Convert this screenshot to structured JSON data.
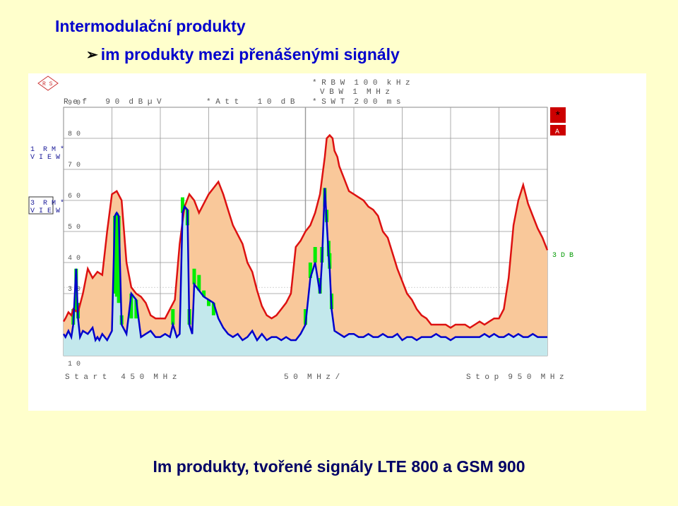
{
  "page": {
    "title": "Intermodulační produkty",
    "bullet": "im produkty mezi přenášenými signály",
    "caption": "Im produkty, tvořené signály LTE 800 a GSM 900"
  },
  "analyzer": {
    "ref_label": "R e f    9 0  d B µ V",
    "att_label": "* A t t    1 0  d B",
    "rbw_label": "* R B W  1 0 0  k H z",
    "vbw_label": "V B W  1  M H z",
    "swt_label": "* S W T  2 0 0  m s",
    "trace1_label_line1": "1  R M *",
    "trace1_label_line2": "V I E W",
    "trace3_label_line1": "3  R M *",
    "trace3_label_line2": "V I E W",
    "marker_star": "*",
    "marker_a": "A",
    "db3_label": "3 D B",
    "start_label": "S t a r t   4 5 0  M H z",
    "span_label": "5 0  M H z /",
    "stop_label": "S t o p  9 5 0  M H z",
    "logo_letters": "R S"
  },
  "colors": {
    "fill_orange": "#F9C89A",
    "trace_red": "#DD1111",
    "trace_blue": "#0000CC",
    "trace_green": "#00EE00",
    "fill_cyan": "#BDEBF5",
    "text_gray": "#555555",
    "text_blue": "#1A1A99",
    "text_green": "#009900",
    "marker_red": "#CC0000"
  },
  "chart_data": {
    "type": "line",
    "x_unit": "MHz",
    "y_unit": "dBµV",
    "xlim": [
      450,
      950
    ],
    "ylim": [
      10,
      90
    ],
    "y_ticks": [
      {
        "value": 90,
        "label": "9 0"
      },
      {
        "value": 80,
        "label": "8 0"
      },
      {
        "value": 70,
        "label": "7 0"
      },
      {
        "value": 60,
        "label": "6 0"
      },
      {
        "value": 50,
        "label": "5 0"
      },
      {
        "value": 40,
        "label": "4 0"
      },
      {
        "value": 30,
        "label": "3 0"
      },
      {
        "value": 10,
        "label": "1 0"
      }
    ],
    "x_divisions": 10,
    "grid": true,
    "threshold_3db_level": 32,
    "series": [
      {
        "role": "trace-red-maxhold",
        "x": [
          450,
          452,
          455,
          458,
          460,
          465,
          470,
          475,
          480,
          485,
          490,
          495,
          500,
          505,
          510,
          515,
          520,
          525,
          530,
          535,
          540,
          545,
          550,
          555,
          560,
          565,
          570,
          575,
          580,
          585,
          590,
          595,
          600,
          605,
          610,
          615,
          620,
          625,
          630,
          635,
          640,
          645,
          650,
          655,
          660,
          665,
          670,
          675,
          680,
          685,
          690,
          695,
          700,
          705,
          710,
          715,
          720,
          722,
          725,
          728,
          730,
          733,
          735,
          740,
          745,
          750,
          755,
          760,
          765,
          770,
          775,
          780,
          785,
          790,
          795,
          800,
          805,
          810,
          815,
          820,
          825,
          830,
          835,
          840,
          845,
          850,
          855,
          860,
          865,
          870,
          875,
          880,
          885,
          890,
          895,
          900,
          905,
          910,
          915,
          920,
          925,
          930,
          935,
          940,
          945,
          950
        ],
        "y": [
          21,
          22,
          24,
          23,
          25,
          24,
          30,
          38,
          35,
          37,
          36,
          50,
          62,
          63,
          60,
          40,
          32,
          30,
          29,
          27,
          23,
          22,
          22,
          22,
          25,
          28,
          46,
          58,
          62,
          60,
          56,
          59,
          62,
          64,
          66,
          62,
          57,
          52,
          49,
          46,
          40,
          37,
          31,
          26,
          23,
          22,
          23,
          25,
          27,
          30,
          45,
          47,
          50,
          52,
          56,
          62,
          74,
          80,
          81,
          80,
          76,
          74,
          71,
          67,
          63,
          62,
          61,
          60,
          58,
          57,
          55,
          50,
          48,
          43,
          38,
          34,
          30,
          28,
          25,
          23,
          22,
          20,
          20,
          20,
          20,
          19,
          20,
          20,
          20,
          19,
          20,
          21,
          20,
          21,
          22,
          22,
          25,
          35,
          52,
          60,
          65,
          59,
          55,
          51,
          48,
          44
        ]
      },
      {
        "role": "trace-blue-rms",
        "x": [
          450,
          452,
          455,
          458,
          460,
          463,
          465,
          467,
          470,
          475,
          480,
          483,
          485,
          487,
          490,
          495,
          500,
          503,
          505,
          507,
          510,
          515,
          520,
          525,
          530,
          535,
          540,
          545,
          550,
          555,
          560,
          563,
          565,
          567,
          570,
          573,
          575,
          578,
          580,
          583,
          585,
          590,
          595,
          600,
          605,
          610,
          615,
          620,
          625,
          630,
          635,
          640,
          645,
          650,
          655,
          660,
          665,
          670,
          675,
          680,
          685,
          690,
          695,
          700,
          705,
          710,
          715,
          717,
          720,
          722,
          724,
          725,
          727,
          730,
          735,
          740,
          745,
          750,
          755,
          760,
          765,
          770,
          775,
          780,
          785,
          790,
          795,
          800,
          805,
          810,
          815,
          820,
          825,
          830,
          835,
          840,
          845,
          850,
          855,
          860,
          865,
          870,
          875,
          880,
          885,
          890,
          895,
          900,
          905,
          910,
          915,
          920,
          925,
          930,
          935,
          940,
          945,
          950
        ],
        "y": [
          17,
          16,
          18,
          16,
          20,
          38,
          22,
          16,
          18,
          17,
          19,
          15,
          16,
          15,
          17,
          15,
          18,
          55,
          56,
          55,
          20,
          17,
          30,
          28,
          16,
          17,
          18,
          16,
          16,
          17,
          16,
          20,
          18,
          16,
          17,
          56,
          58,
          57,
          20,
          17,
          33,
          31,
          29,
          28,
          27,
          22,
          19,
          17,
          16,
          17,
          15,
          16,
          18,
          15,
          17,
          15,
          16,
          16,
          15,
          16,
          15,
          15,
          17,
          20,
          35,
          40,
          30,
          40,
          64,
          53,
          42,
          38,
          25,
          18,
          17,
          16,
          17,
          17,
          16,
          16,
          17,
          16,
          16,
          17,
          16,
          16,
          17,
          15,
          16,
          16,
          15,
          16,
          16,
          16,
          17,
          16,
          16,
          15,
          16,
          16,
          16,
          16,
          16,
          16,
          17,
          16,
          17,
          16,
          16,
          17,
          16,
          17,
          16,
          16,
          17,
          16,
          16,
          16
        ]
      }
    ]
  }
}
